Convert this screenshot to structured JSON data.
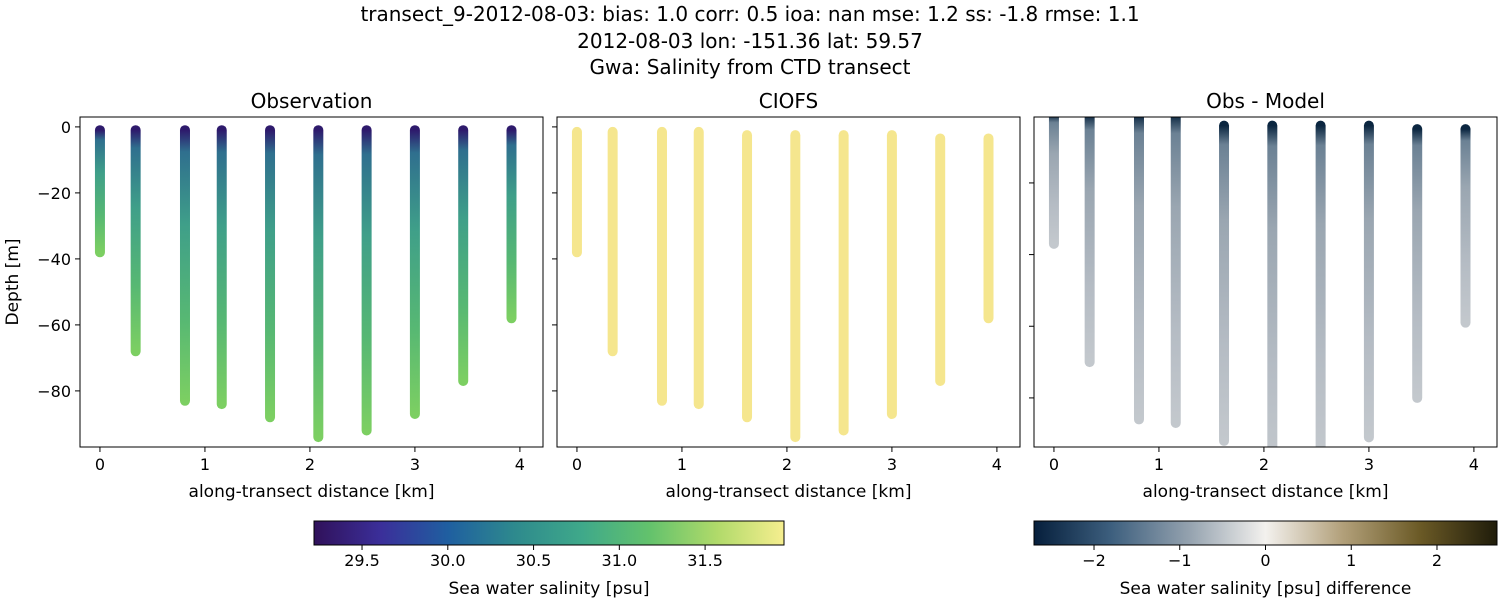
{
  "title_lines": [
    "transect_9-2012-08-03: bias: 1.0  corr: 0.5  ioa: nan  mse: 1.2  ss: -1.8  rmse: 1.1",
    "2012-08-03 lon: -151.36 lat: 59.57",
    "Gwa: Salinity from CTD transect"
  ],
  "chart_data": [
    {
      "type": "scatter",
      "title": "Observation",
      "xlabel": "along-transect distance [km]",
      "ylabel": "Depth [m]",
      "xlim": [
        -0.19,
        4.22
      ],
      "ylim": [
        -97,
        3
      ],
      "xticks": [
        "0",
        "1",
        "2",
        "3",
        "4"
      ],
      "yticks": [
        "0",
        "−20",
        "−40",
        "−60",
        "−80"
      ],
      "x": [
        0,
        0.34,
        0.81,
        1.16,
        1.62,
        2.08,
        2.54,
        3.0,
        3.46,
        3.92
      ],
      "depth_top": [
        -1,
        -1,
        -1,
        -1,
        -1,
        -1,
        -1,
        -1,
        -1,
        -1
      ],
      "depth_bottom": [
        -38,
        -68,
        -83,
        -84,
        -88,
        -94,
        -92,
        -87,
        -77,
        -58
      ],
      "colormap": "viridis-like",
      "colors": [
        "#2e1a6c",
        "#2f6f8e",
        "#3f9f89",
        "#57b873",
        "#7ccf62"
      ]
    },
    {
      "type": "scatter",
      "title": "CIOFS",
      "xlabel": "along-transect distance [km]",
      "xlim": [
        -0.19,
        4.22
      ],
      "ylim": [
        -97,
        3
      ],
      "xticks": [
        "0",
        "1",
        "2",
        "3",
        "4"
      ],
      "x": [
        0,
        0.34,
        0.81,
        1.16,
        1.62,
        2.08,
        2.54,
        3.0,
        3.46,
        3.92
      ],
      "depth_top": [
        -1.5,
        -1.5,
        -1.5,
        -1.5,
        -2.5,
        -2.5,
        -2.5,
        -2.5,
        -3.5,
        -3.5
      ],
      "depth_bottom": [
        -38,
        -68,
        -83,
        -84,
        -88,
        -94,
        -92,
        -87,
        -77,
        -58
      ],
      "colors": [
        "#f5e68e",
        "#f5e68e"
      ]
    },
    {
      "type": "scatter",
      "title": "Obs - Model",
      "xlabel": "along-transect distance [km]",
      "xlim": [
        -0.19,
        4.22
      ],
      "ylim": [
        -93.7,
        -1.6
      ],
      "xticks": [
        "0",
        "1",
        "2",
        "3",
        "4"
      ],
      "x": [
        0,
        0.34,
        0.81,
        1.16,
        1.62,
        2.08,
        2.54,
        3.0,
        3.46,
        3.92
      ],
      "depth_top": [
        -1,
        -1,
        -1,
        -1,
        -4,
        -4,
        -4,
        -4,
        -5,
        -5
      ],
      "depth_bottom": [
        -37,
        -70,
        -86,
        -87,
        -92,
        -100,
        -96,
        -91,
        -80,
        -59
      ],
      "colors": [
        "#0b2640",
        "#6b8194",
        "#9aa6b1",
        "#b5bcc4",
        "#c3c8cd"
      ]
    }
  ],
  "colorbars": [
    {
      "label": "Sea water salinity [psu]",
      "range": [
        29.22,
        31.96
      ],
      "ticks": [
        "29.5",
        "30.0",
        "30.5",
        "31.0",
        "31.5"
      ],
      "tick_values": [
        29.5,
        30.0,
        30.5,
        31.0,
        31.5
      ],
      "stops": [
        "#30115a",
        "#3b2f9a",
        "#1f5fa0",
        "#2e8a8d",
        "#3fa98a",
        "#63c26c",
        "#b0da6a",
        "#f6ee8f"
      ]
    },
    {
      "label": "Sea water salinity [psu] difference",
      "range": [
        -2.7,
        2.7
      ],
      "ticks": [
        "−2",
        "−1",
        "0",
        "1",
        "2"
      ],
      "tick_values": [
        -2,
        -1,
        0,
        1,
        2
      ],
      "stops": [
        "#061f3c",
        "#3d5f7e",
        "#93a1ae",
        "#f3f1ee",
        "#b2a07a",
        "#6b5a26",
        "#1f1c0a"
      ]
    }
  ]
}
